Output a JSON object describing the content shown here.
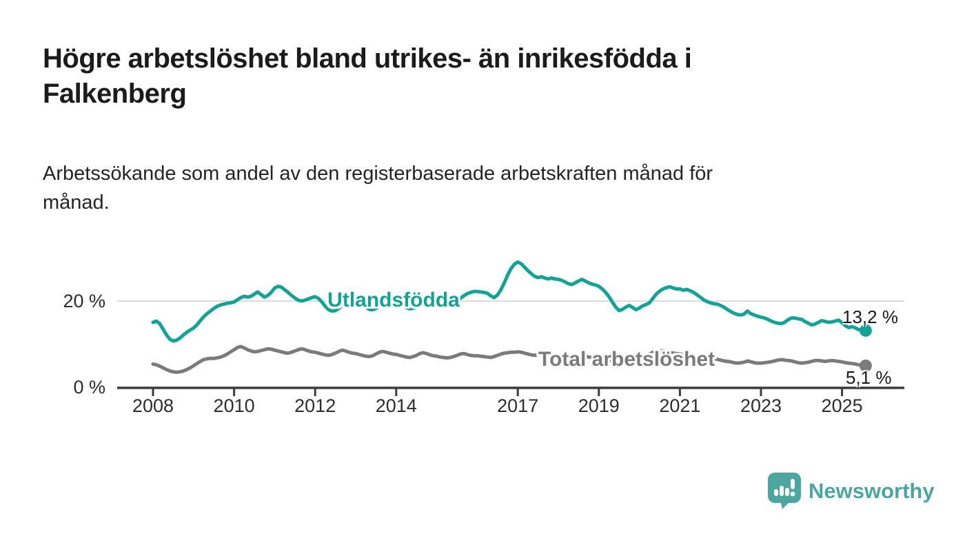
{
  "header": {
    "title": "Högre arbetslöshet bland utrikes- än inrikesfödda i Falkenberg",
    "title_line1": "Högre arbetslöshet bland utrikes- än inrikesfödda i",
    "title_line2": "Falkenberg",
    "subtitle": "Arbetssökande som andel av den registerbaserade arbetskraften månad för månad.",
    "subtitle_line1": "Arbetssökande som andel av den registerbaserade arbetskraften månad för",
    "subtitle_line2": "månad."
  },
  "footer": {
    "brand_name": "Newsworthy",
    "brand_color": "#4ba6a0",
    "logo_icon": "speech-bubble-bar-chart-icon"
  },
  "chart_data": {
    "type": "line",
    "x_unit": "monthly",
    "x_start": 2008.0,
    "x_end": 2025.583,
    "points_per_year": 12,
    "ylim": [
      0,
      30
    ],
    "grid": "single horizontal gridline at 20 %",
    "legend_position": "inline labels on lines",
    "gridline_color": "#dcdcdc",
    "axis_color": "#3c3c3c",
    "y_ticks": [
      {
        "value": 0,
        "label": "0 %"
      },
      {
        "value": 20,
        "label": "20 %"
      }
    ],
    "x_ticks": [
      {
        "year": 2008,
        "label": "2008"
      },
      {
        "year": 2010,
        "label": "2010"
      },
      {
        "year": 2012,
        "label": "2012"
      },
      {
        "year": 2014,
        "label": "2014"
      },
      {
        "year": 2017,
        "label": "2017"
      },
      {
        "year": 2019,
        "label": "2019"
      },
      {
        "year": 2021,
        "label": "2021"
      },
      {
        "year": 2023,
        "label": "2023"
      },
      {
        "year": 2025,
        "label": "2025"
      }
    ],
    "series": [
      {
        "name": "Utlandsfödda",
        "color": "#12a397",
        "end_value": 13.2,
        "end_label": "13,2 %",
        "values": [
          15.1,
          15.4,
          14.8,
          13.5,
          12.2,
          11.2,
          10.8,
          11.0,
          11.5,
          12.2,
          12.8,
          13.3,
          13.8,
          14.5,
          15.5,
          16.4,
          17.1,
          17.7,
          18.3,
          18.8,
          19.1,
          19.3,
          19.5,
          19.6,
          19.8,
          20.3,
          20.8,
          21.1,
          20.9,
          21.1,
          21.6,
          22.1,
          21.5,
          20.9,
          21.3,
          22.0,
          23.0,
          23.4,
          23.2,
          22.6,
          22.0,
          21.3,
          20.7,
          20.2,
          20.0,
          20.2,
          20.5,
          20.8,
          21.0,
          20.6,
          19.8,
          18.8,
          18.0,
          17.7,
          17.8,
          18.3,
          19.0,
          19.6,
          20.1,
          20.3,
          20.2,
          19.8,
          19.2,
          18.6,
          18.1,
          18.0,
          18.3,
          18.8,
          19.3,
          19.7,
          20.0,
          20.2,
          20.1,
          19.6,
          19.0,
          18.5,
          18.2,
          18.3,
          18.7,
          19.1,
          19.5,
          19.8,
          20.0,
          20.0,
          19.8,
          19.4,
          19.1,
          19.0,
          19.2,
          19.6,
          20.1,
          20.6,
          21.2,
          21.7,
          22.0,
          22.2,
          22.2,
          22.1,
          22.0,
          21.8,
          21.2,
          20.8,
          21.4,
          22.6,
          24.2,
          26.0,
          27.5,
          28.5,
          29.0,
          28.6,
          27.8,
          27.0,
          26.3,
          25.7,
          25.4,
          25.6,
          25.3,
          25.1,
          25.3,
          25.1,
          25.0,
          24.8,
          24.4,
          24.0,
          23.8,
          24.2,
          24.6,
          25.0,
          24.6,
          24.2,
          23.9,
          23.7,
          23.4,
          22.8,
          22.0,
          21.0,
          19.8,
          18.6,
          17.8,
          18.1,
          18.6,
          19.0,
          18.5,
          18.0,
          18.4,
          18.9,
          19.2,
          19.6,
          20.6,
          21.6,
          22.3,
          22.8,
          23.1,
          23.3,
          23.0,
          22.8,
          22.8,
          22.5,
          22.7,
          22.4,
          22.0,
          21.5,
          20.9,
          20.3,
          19.9,
          19.6,
          19.4,
          19.3,
          19.0,
          18.6,
          18.1,
          17.6,
          17.2,
          16.9,
          16.8,
          17.0,
          17.7,
          17.1,
          16.8,
          16.5,
          16.3,
          16.1,
          15.8,
          15.4,
          15.1,
          14.9,
          14.8,
          15.1,
          15.7,
          16.1,
          16.1,
          15.9,
          15.8,
          15.3,
          14.9,
          14.5,
          14.7,
          15.1,
          15.5,
          15.3,
          15.1,
          15.2,
          15.4,
          15.6,
          15.0,
          14.3,
          13.9,
          14.1,
          13.8,
          13.4,
          13.3,
          13.2
        ]
      },
      {
        "name": "Total arbetslöshet",
        "color": "#7b7b7b",
        "end_value": 5.1,
        "end_label": "5,1 %",
        "values": [
          5.5,
          5.3,
          5.0,
          4.6,
          4.2,
          3.9,
          3.7,
          3.6,
          3.7,
          3.9,
          4.2,
          4.6,
          5.1,
          5.6,
          6.1,
          6.5,
          6.7,
          6.8,
          6.8,
          6.9,
          7.1,
          7.4,
          7.8,
          8.3,
          8.8,
          9.3,
          9.5,
          9.2,
          8.8,
          8.5,
          8.3,
          8.4,
          8.6,
          8.8,
          9.0,
          8.9,
          8.7,
          8.5,
          8.3,
          8.1,
          8.0,
          8.2,
          8.5,
          8.8,
          9.0,
          8.8,
          8.5,
          8.3,
          8.2,
          8.0,
          7.8,
          7.6,
          7.5,
          7.7,
          8.0,
          8.4,
          8.7,
          8.5,
          8.2,
          8.0,
          7.9,
          7.7,
          7.5,
          7.3,
          7.2,
          7.4,
          7.8,
          8.2,
          8.4,
          8.2,
          8.0,
          7.8,
          7.7,
          7.5,
          7.3,
          7.1,
          7.0,
          7.2,
          7.5,
          7.9,
          8.1,
          7.9,
          7.6,
          7.4,
          7.3,
          7.1,
          7.0,
          6.9,
          7.0,
          7.2,
          7.5,
          7.8,
          7.9,
          7.7,
          7.5,
          7.4,
          7.4,
          7.3,
          7.2,
          7.1,
          7.0,
          7.2,
          7.5,
          7.8,
          8.0,
          8.1,
          8.2,
          8.2,
          8.3,
          8.2,
          8.0,
          7.8,
          7.6,
          7.5,
          7.7,
          8.0,
          8.1,
          7.9,
          7.7,
          7.6,
          7.5,
          7.3,
          7.2,
          7.0,
          6.9,
          7.0,
          7.2,
          7.4,
          7.3,
          7.1,
          7.0,
          6.9,
          6.8,
          6.7,
          6.5,
          6.4,
          6.3,
          6.4,
          6.6,
          6.8,
          6.9,
          6.8,
          6.7,
          6.7,
          6.8,
          6.9,
          7.2,
          7.8,
          8.2,
          8.5,
          8.6,
          8.5,
          8.4,
          8.2,
          8.0,
          7.9,
          7.8,
          7.7,
          7.6,
          7.4,
          7.2,
          7.0,
          6.9,
          6.8,
          6.7,
          6.7,
          6.8,
          6.6,
          6.4,
          6.2,
          6.1,
          6.0,
          5.8,
          5.7,
          5.8,
          5.9,
          6.2,
          6.0,
          5.8,
          5.7,
          5.7,
          5.8,
          5.9,
          6.0,
          6.2,
          6.4,
          6.5,
          6.4,
          6.3,
          6.2,
          6.0,
          5.8,
          5.7,
          5.8,
          5.9,
          6.1,
          6.3,
          6.3,
          6.2,
          6.1,
          6.2,
          6.3,
          6.2,
          6.1,
          6.0,
          5.8,
          5.7,
          5.6,
          5.5,
          5.3,
          5.2,
          5.1
        ]
      }
    ]
  }
}
